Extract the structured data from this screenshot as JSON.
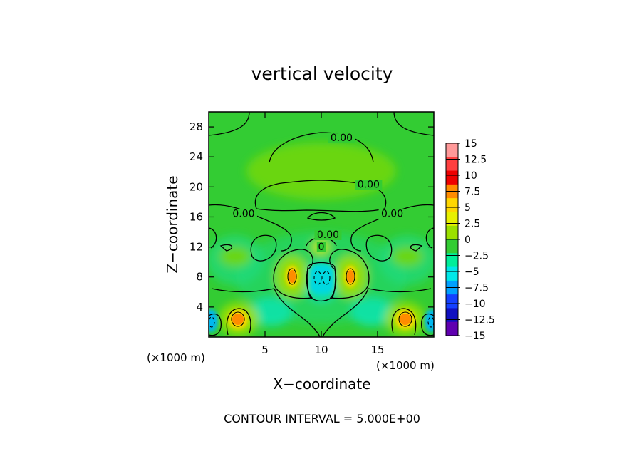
{
  "chart_data": {
    "type": "heatmap",
    "title": "vertical velocity",
    "xlabel": "X−coordinate",
    "ylabel": "Z−coordinate",
    "x_unit": "(×1000 m)",
    "y_unit": "(×1000 m)",
    "xlim": [
      0,
      20
    ],
    "ylim": [
      0,
      30
    ],
    "x_ticks": [
      5,
      10,
      15
    ],
    "y_ticks": [
      4,
      8,
      12,
      16,
      20,
      24,
      28
    ],
    "footer": "CONTOUR INTERVAL = 5.000E+00",
    "contour_interval": 5.0,
    "contour_labels": [
      {
        "text": "0.00",
        "x": 11.8,
        "z": 26.1
      },
      {
        "text": "0.00",
        "x": 14.2,
        "z": 19.9
      },
      {
        "text": "0.00",
        "x": 3.1,
        "z": 16.0
      },
      {
        "text": "0.00",
        "x": 16.3,
        "z": 16.0
      },
      {
        "text": "0.00",
        "x": 10.6,
        "z": 13.2
      },
      {
        "text": "0",
        "x": 10.0,
        "z": 11.6
      }
    ],
    "colorbar": {
      "levels": [
        "15",
        "12.5",
        "10",
        "7.5",
        "5",
        "2.5",
        "0",
        "−2.5",
        "−5",
        "−7.5",
        "−10",
        "−12.5",
        "−15"
      ],
      "colors": [
        "#ff9999",
        "#ff4040",
        "#ee0000",
        "#ff8c00",
        "#ffd700",
        "#e8f000",
        "#9be000",
        "#33cc33",
        "#00ee99",
        "#00e8e8",
        "#00a0ff",
        "#1440ff",
        "#1010c0",
        "#6000b0"
      ]
    },
    "background_value": 0,
    "features": [
      {
        "kind": "updraft",
        "x": 2.5,
        "z": 2.4,
        "peak": 7.5
      },
      {
        "kind": "updraft",
        "x": 17.5,
        "z": 2.4,
        "peak": 7.5
      },
      {
        "kind": "updraft",
        "x": 7.3,
        "z": 8.0,
        "peak": 7.5
      },
      {
        "kind": "updraft",
        "x": 12.7,
        "z": 8.0,
        "peak": 7.5
      },
      {
        "kind": "downdraft",
        "x": 10.0,
        "z": 7.8,
        "peak": -5
      },
      {
        "kind": "downdraft",
        "x": 0.3,
        "z": 2.0,
        "peak": -5
      },
      {
        "kind": "downdraft",
        "x": 19.7,
        "z": 2.0,
        "peak": -5
      }
    ]
  }
}
